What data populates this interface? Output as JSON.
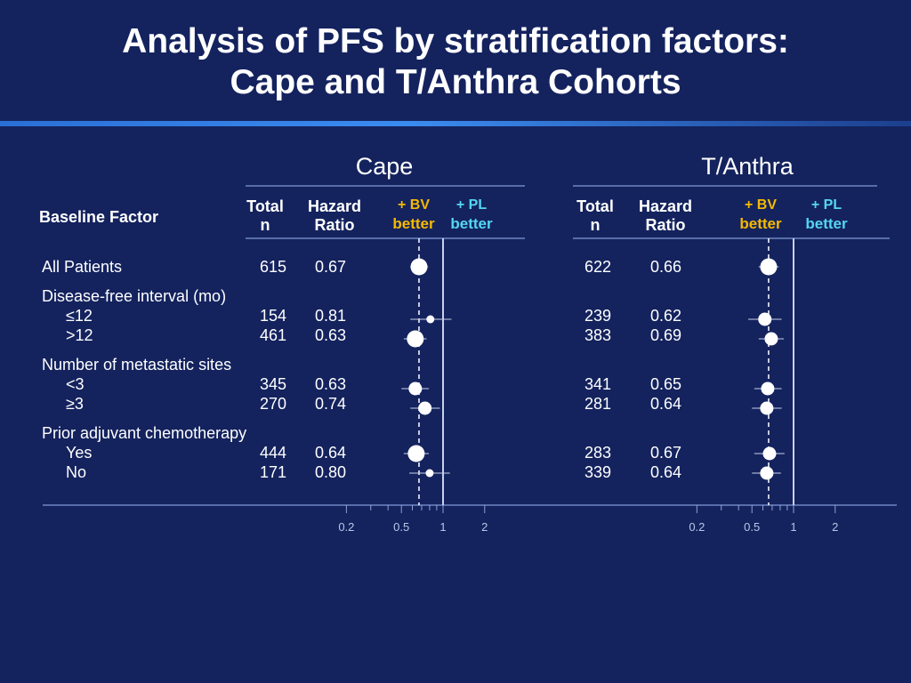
{
  "title_line1": "Analysis of PFS by stratification factors:",
  "title_line2": "Cape and T/Anthra Cohorts",
  "header": {
    "baseline_factor": "Baseline Factor",
    "total_n": [
      "Total",
      "n"
    ],
    "hazard_ratio": [
      "Hazard",
      "Ratio"
    ],
    "bv_better": [
      "+ BV",
      "better"
    ],
    "pl_better": [
      "+ PL",
      "better"
    ]
  },
  "colors": {
    "background": "#14235e",
    "bv": "#f6b900",
    "pl": "#55d6f2"
  },
  "chart_data": {
    "type": "forest",
    "x_scale": "log",
    "xlim": [
      0.2,
      2
    ],
    "x_ticks": [
      "0.2",
      "0.5",
      "1",
      "2"
    ],
    "minor_ticks": [
      0.3,
      0.4,
      0.6,
      0.7,
      0.8,
      0.9
    ],
    "reference_line": 1,
    "cohorts": [
      {
        "name": "Cape",
        "overall_hr": 0.67,
        "rows": [
          {
            "label": "All Patients",
            "n": "615",
            "hr": "0.67",
            "value": 0.67,
            "ci": [
              0.58,
              0.78
            ],
            "size": "large"
          },
          {
            "label": "Disease-free interval (mo)"
          },
          {
            "label": "≤12",
            "n": "154",
            "hr": "0.81",
            "value": 0.81,
            "ci": [
              0.58,
              1.15
            ],
            "size": "small"
          },
          {
            "label": ">12",
            "n": "461",
            "hr": "0.63",
            "value": 0.63,
            "ci": [
              0.52,
              0.76
            ],
            "size": "large"
          },
          {
            "label": "Number of metastatic sites"
          },
          {
            "label": "<3",
            "n": "345",
            "hr": "0.63",
            "value": 0.63,
            "ci": [
              0.5,
              0.79
            ],
            "size": "medium"
          },
          {
            "label": "≥3",
            "n": "270",
            "hr": "0.74",
            "value": 0.74,
            "ci": [
              0.58,
              0.95
            ],
            "size": "medium"
          },
          {
            "label": "Prior adjuvant chemotherapy"
          },
          {
            "label": "Yes",
            "n": "444",
            "hr": "0.64",
            "value": 0.64,
            "ci": [
              0.52,
              0.79
            ],
            "size": "large"
          },
          {
            "label": "No",
            "n": "171",
            "hr": "0.80",
            "value": 0.8,
            "ci": [
              0.57,
              1.12
            ],
            "size": "small"
          }
        ]
      },
      {
        "name": "T/Anthra",
        "overall_hr": 0.66,
        "rows": [
          {
            "label": "All Patients",
            "n": "622",
            "hr": "0.66",
            "value": 0.66,
            "ci": [
              0.56,
              0.78
            ],
            "size": "large"
          },
          {
            "label": "Disease-free interval (mo)"
          },
          {
            "label": "≤12",
            "n": "239",
            "hr": "0.62",
            "value": 0.62,
            "ci": [
              0.47,
              0.82
            ],
            "size": "medium"
          },
          {
            "label": ">12",
            "n": "383",
            "hr": "0.69",
            "value": 0.69,
            "ci": [
              0.56,
              0.85
            ],
            "size": "medium"
          },
          {
            "label": "Number of metastatic sites"
          },
          {
            "label": "<3",
            "n": "341",
            "hr": "0.65",
            "value": 0.65,
            "ci": [
              0.52,
              0.82
            ],
            "size": "medium"
          },
          {
            "label": "≥3",
            "n": "281",
            "hr": "0.64",
            "value": 0.64,
            "ci": [
              0.5,
              0.82
            ],
            "size": "medium"
          },
          {
            "label": "Prior adjuvant chemotherapy"
          },
          {
            "label": "Yes",
            "n": "283",
            "hr": "0.67",
            "value": 0.67,
            "ci": [
              0.52,
              0.86
            ],
            "size": "medium"
          },
          {
            "label": "No",
            "n": "339",
            "hr": "0.64",
            "value": 0.64,
            "ci": [
              0.5,
              0.81
            ],
            "size": "medium"
          }
        ]
      }
    ]
  }
}
